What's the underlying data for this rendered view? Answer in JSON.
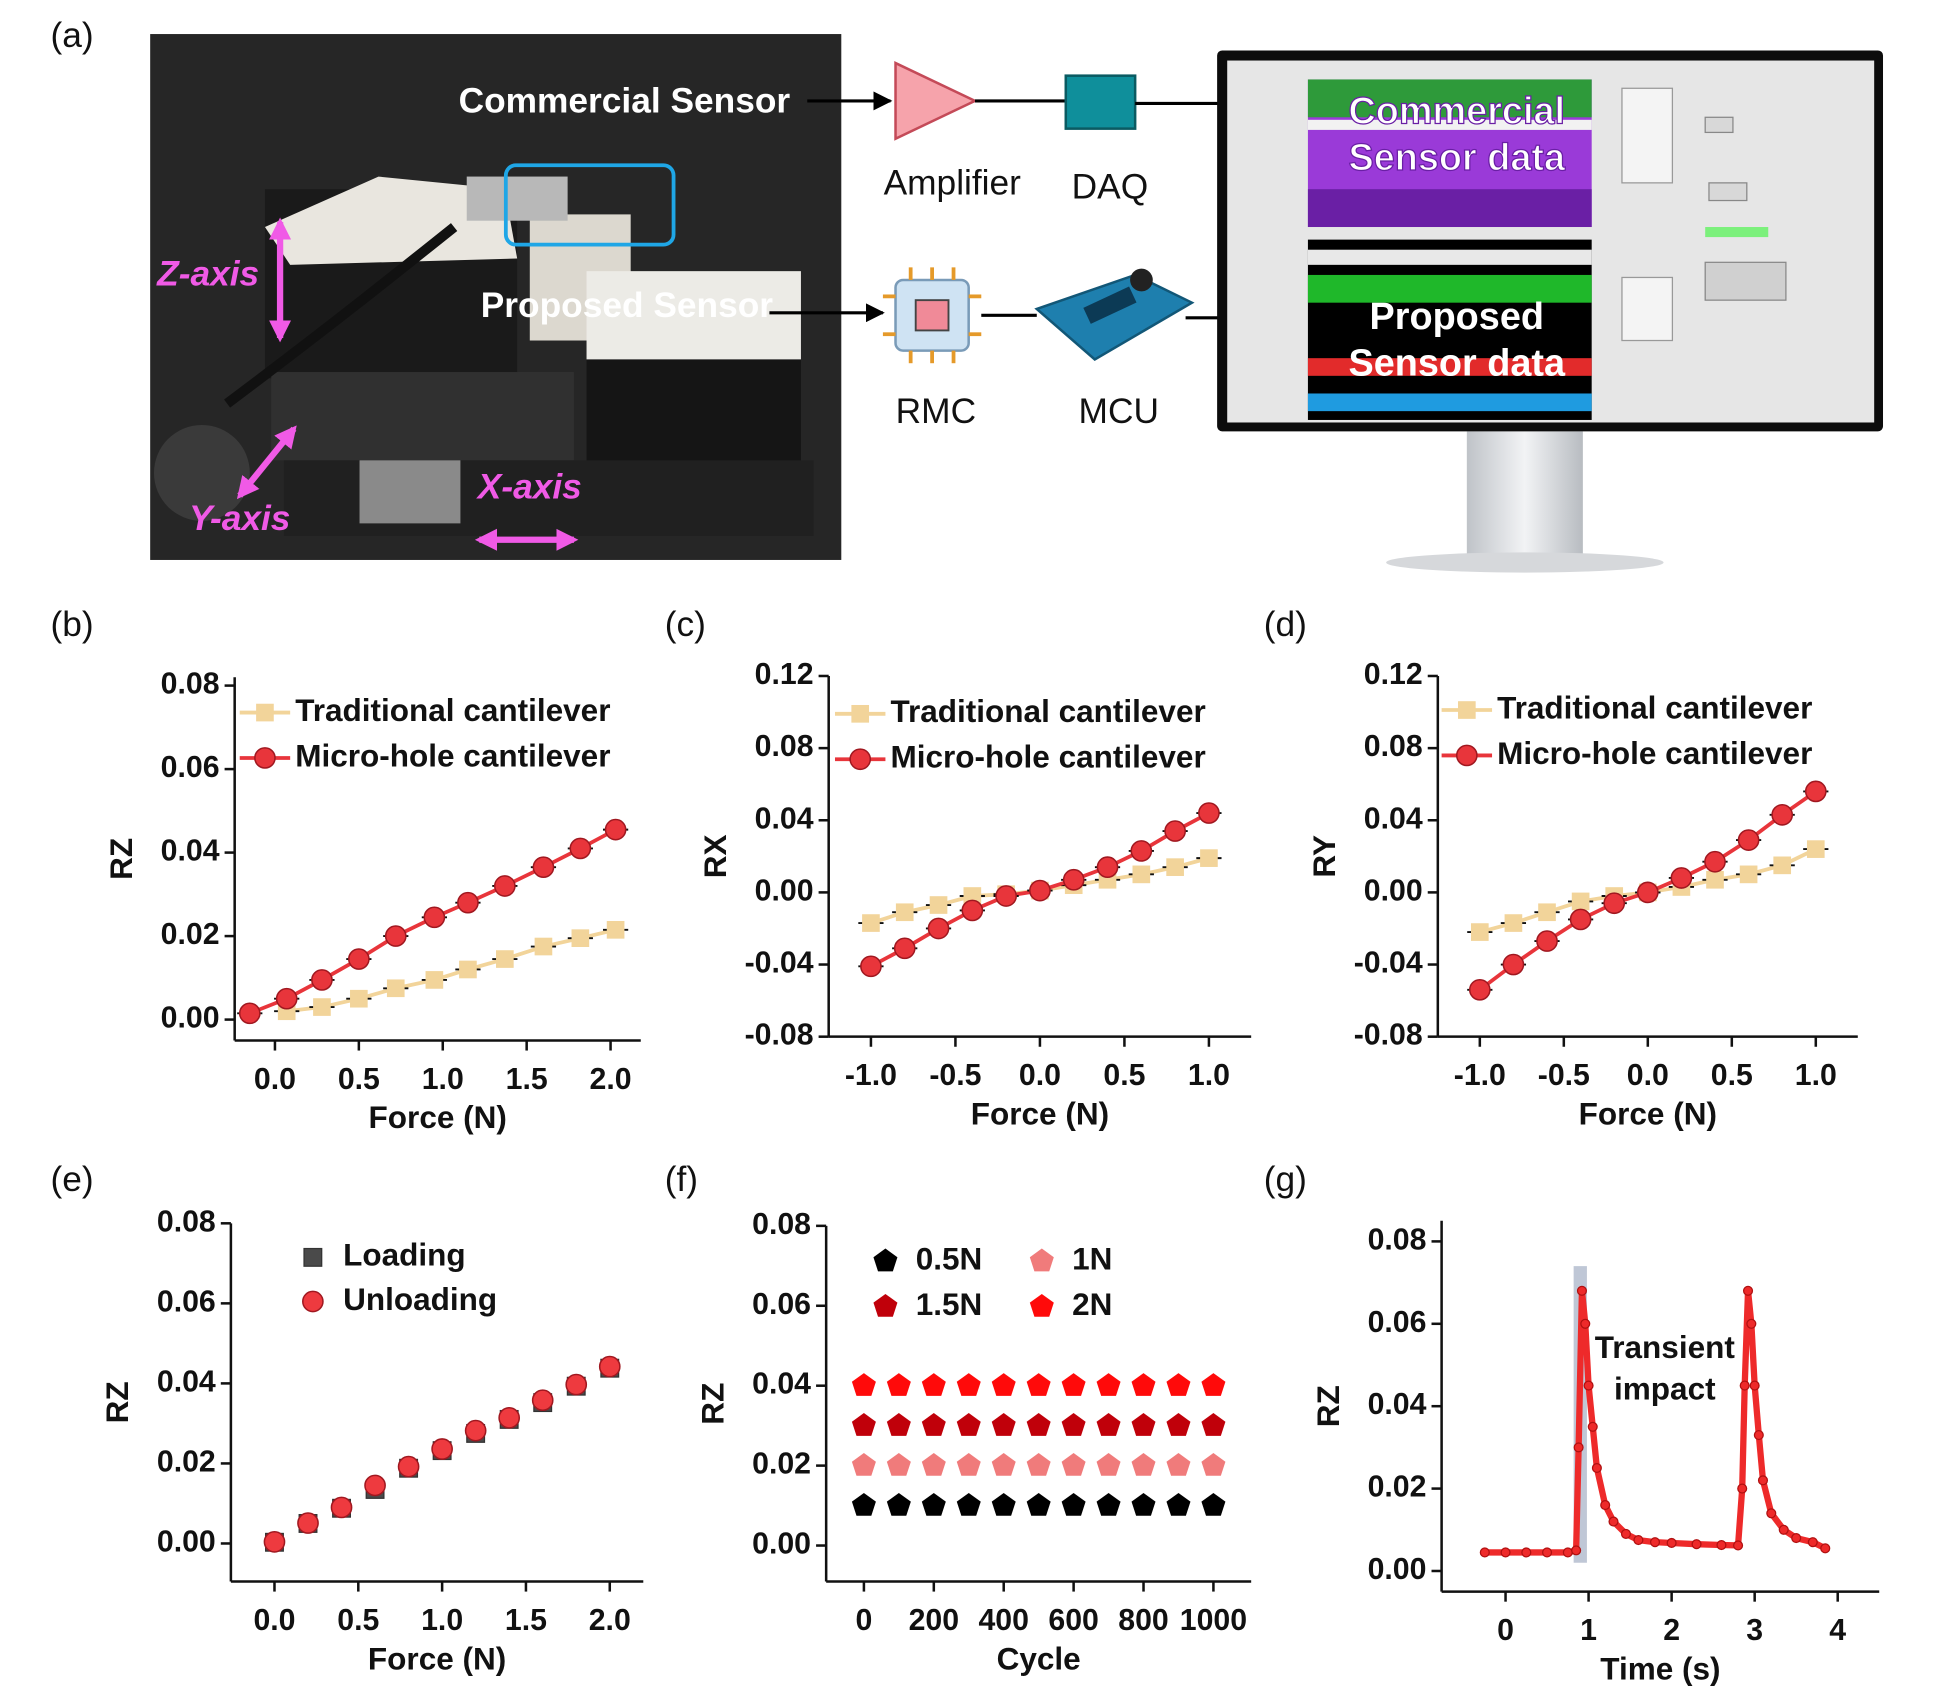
{
  "figure": {
    "panel_labels": [
      "(a)",
      "(b)",
      "(c)",
      "(d)",
      "(e)",
      "(f)",
      "(g)"
    ]
  },
  "setup": {
    "commercial_sensor": "Commercial Sensor",
    "proposed_sensor": "Proposed Sensor",
    "z_axis": "Z-axis",
    "y_axis": "Y-axis",
    "x_axis": "X-axis",
    "amplifier": "Amplifier",
    "daq": "DAQ",
    "rmc": "RMC",
    "mcu": "MCU",
    "commercial_data": [
      "Commercial",
      "Sensor data"
    ],
    "proposed_data": [
      "Proposed",
      "Sensor data"
    ]
  },
  "chart_data": [
    {
      "type": "line",
      "xlabel": "Force (N)",
      "ylabel": "RZ",
      "xlim": [
        -0.24,
        2.18
      ],
      "ylim": [
        -0.005,
        0.082
      ],
      "xticks": [
        {
          "value": 0,
          "label": "0.0"
        },
        {
          "value": 0.5,
          "label": "0.5"
        },
        {
          "value": 1,
          "label": "1.0"
        },
        {
          "value": 1.5,
          "label": "1.5"
        },
        {
          "value": 2,
          "label": "2.0"
        }
      ],
      "yticks": [
        {
          "value": 0,
          "label": "0.00"
        },
        {
          "value": 0.02,
          "label": "0.02"
        },
        {
          "value": 0.04,
          "label": "0.04"
        },
        {
          "value": 0.06,
          "label": "0.06"
        },
        {
          "value": 0.08,
          "label": "0.08"
        }
      ],
      "series": [
        {
          "name": "Traditional cantilever",
          "color": "#f2d49a",
          "marker": "square",
          "x": [
            0.07,
            0.28,
            0.5,
            0.72,
            0.95,
            1.15,
            1.37,
            1.6,
            1.82,
            2.03
          ],
          "values": [
            0.002,
            0.003,
            0.005,
            0.0075,
            0.0095,
            0.012,
            0.0145,
            0.0175,
            0.0195,
            0.0215
          ]
        },
        {
          "name": "Micro-hole cantilever",
          "color": "#e8353b",
          "marker": "circle",
          "x": [
            -0.15,
            0.07,
            0.28,
            0.5,
            0.72,
            0.95,
            1.15,
            1.37,
            1.6,
            1.82,
            2.03
          ],
          "values": [
            0.0015,
            0.005,
            0.0095,
            0.0145,
            0.02,
            0.0245,
            0.028,
            0.032,
            0.0365,
            0.041,
            0.0455
          ]
        }
      ]
    },
    {
      "type": "line",
      "xlabel": "Force (N)",
      "ylabel": "RX",
      "xlim": [
        -1.25,
        1.25
      ],
      "ylim": [
        -0.08,
        0.12
      ],
      "xticks": [
        {
          "value": -1,
          "label": "-1.0"
        },
        {
          "value": -0.5,
          "label": "-0.5"
        },
        {
          "value": 0,
          "label": "0.0"
        },
        {
          "value": 0.5,
          "label": "0.5"
        },
        {
          "value": 1,
          "label": "1.0"
        }
      ],
      "yticks": [
        {
          "value": -0.08,
          "label": "-0.08"
        },
        {
          "value": -0.04,
          "label": "-0.04"
        },
        {
          "value": 0,
          "label": "0.00"
        },
        {
          "value": 0.04,
          "label": "0.04"
        },
        {
          "value": 0.08,
          "label": "0.08"
        },
        {
          "value": 0.12,
          "label": "0.12"
        }
      ],
      "series": [
        {
          "name": "Traditional cantilever",
          "color": "#f2d49a",
          "marker": "square",
          "x": [
            -1,
            -0.8,
            -0.6,
            -0.4,
            -0.2,
            0,
            0.2,
            0.4,
            0.6,
            0.8,
            1
          ],
          "values": [
            -0.017,
            -0.011,
            -0.007,
            -0.002,
            -0.001,
            0.001,
            0.004,
            0.007,
            0.01,
            0.014,
            0.019
          ]
        },
        {
          "name": "Micro-hole cantilever",
          "color": "#e8353b",
          "marker": "circle",
          "x": [
            -1,
            -0.8,
            -0.6,
            -0.4,
            -0.2,
            0,
            0.2,
            0.4,
            0.6,
            0.8,
            1
          ],
          "values": [
            -0.041,
            -0.031,
            -0.02,
            -0.01,
            -0.002,
            0.001,
            0.007,
            0.014,
            0.023,
            0.034,
            0.044
          ]
        }
      ]
    },
    {
      "type": "line",
      "xlabel": "Force (N)",
      "ylabel": "RY",
      "xlim": [
        -1.25,
        1.25
      ],
      "ylim": [
        -0.08,
        0.12
      ],
      "xticks": [
        {
          "value": -1,
          "label": "-1.0"
        },
        {
          "value": -0.5,
          "label": "-0.5"
        },
        {
          "value": 0,
          "label": "0.0"
        },
        {
          "value": 0.5,
          "label": "0.5"
        },
        {
          "value": 1,
          "label": "1.0"
        }
      ],
      "yticks": [
        {
          "value": -0.08,
          "label": "-0.08"
        },
        {
          "value": -0.04,
          "label": "-0.04"
        },
        {
          "value": 0,
          "label": "0.00"
        },
        {
          "value": 0.04,
          "label": "0.04"
        },
        {
          "value": 0.08,
          "label": "0.08"
        },
        {
          "value": 0.12,
          "label": "0.12"
        }
      ],
      "series": [
        {
          "name": "Traditional cantilever",
          "color": "#f2d49a",
          "marker": "square",
          "x": [
            -1,
            -0.8,
            -0.6,
            -0.4,
            -0.2,
            0,
            0.2,
            0.4,
            0.6,
            0.8,
            1
          ],
          "values": [
            -0.022,
            -0.017,
            -0.011,
            -0.005,
            -0.002,
            0,
            0.003,
            0.007,
            0.01,
            0.015,
            0.024
          ]
        },
        {
          "name": "Micro-hole cantilever",
          "color": "#e8353b",
          "marker": "circle",
          "x": [
            -1,
            -0.8,
            -0.6,
            -0.4,
            -0.2,
            0,
            0.2,
            0.4,
            0.6,
            0.8,
            1
          ],
          "values": [
            -0.054,
            -0.04,
            -0.027,
            -0.015,
            -0.006,
            0,
            0.008,
            0.017,
            0.029,
            0.043,
            0.056
          ]
        }
      ]
    },
    {
      "type": "scatter",
      "xlabel": "Force (N)",
      "ylabel": "RZ",
      "xlim": [
        -0.26,
        2.2
      ],
      "ylim": [
        -0.0095,
        0.08
      ],
      "x": [
        0,
        0.2,
        0.4,
        0.6,
        0.8,
        1,
        1.2,
        1.4,
        1.6,
        1.8,
        2
      ],
      "xticks": [
        {
          "value": 0,
          "label": "0.0"
        },
        {
          "value": 0.5,
          "label": "0.5"
        },
        {
          "value": 1,
          "label": "1.0"
        },
        {
          "value": 1.5,
          "label": "1.5"
        },
        {
          "value": 2,
          "label": "2.0"
        }
      ],
      "yticks": [
        {
          "value": 0,
          "label": "0.00"
        },
        {
          "value": 0.02,
          "label": "0.02"
        },
        {
          "value": 0.04,
          "label": "0.04"
        },
        {
          "value": 0.06,
          "label": "0.06"
        },
        {
          "value": 0.08,
          "label": "0.08"
        }
      ],
      "series": [
        {
          "name": "Loading",
          "color": "#4a4a4a",
          "marker": "square",
          "values": [
            0.0003,
            0.005,
            0.0088,
            0.0135,
            0.0188,
            0.0232,
            0.0275,
            0.031,
            0.0352,
            0.0393,
            0.0438
          ]
        },
        {
          "name": "Unloading",
          "color": "#ee3a3f",
          "marker": "circle",
          "values": [
            0.0004,
            0.0051,
            0.009,
            0.0145,
            0.0192,
            0.0236,
            0.0282,
            0.0314,
            0.0358,
            0.0397,
            0.0442
          ]
        }
      ]
    },
    {
      "type": "scatter",
      "xlabel": "Cycle",
      "ylabel": "RZ",
      "xlim": [
        -108,
        1108
      ],
      "ylim": [
        -0.009,
        0.08
      ],
      "x": [
        0,
        100,
        200,
        300,
        400,
        500,
        600,
        700,
        800,
        900,
        1000
      ],
      "xticks": [
        0,
        200,
        400,
        600,
        800,
        1000
      ],
      "yticks": [
        {
          "value": 0,
          "label": "0.00"
        },
        {
          "value": 0.02,
          "label": "0.02"
        },
        {
          "value": 0.04,
          "label": "0.04"
        },
        {
          "value": 0.06,
          "label": "0.06"
        },
        {
          "value": 0.08,
          "label": "0.08"
        }
      ],
      "series": [
        {
          "name": "0.5N",
          "color": "#000000",
          "marker": "pentagon",
          "values": [
            0.01,
            0.01,
            0.01,
            0.01,
            0.01,
            0.01,
            0.01,
            0.01,
            0.01,
            0.01,
            0.01
          ]
        },
        {
          "name": "1N",
          "color": "#f07b7b",
          "marker": "pentagon",
          "values": [
            0.02,
            0.02,
            0.02,
            0.02,
            0.02,
            0.02,
            0.02,
            0.02,
            0.02,
            0.02,
            0.02
          ]
        },
        {
          "name": "1.5N",
          "color": "#c0000a",
          "marker": "pentagon",
          "values": [
            0.03,
            0.03,
            0.03,
            0.03,
            0.03,
            0.03,
            0.03,
            0.03,
            0.03,
            0.03,
            0.03
          ]
        },
        {
          "name": "2N",
          "color": "#ff0a0a",
          "marker": "pentagon",
          "values": [
            0.04,
            0.04,
            0.04,
            0.04,
            0.04,
            0.04,
            0.04,
            0.04,
            0.04,
            0.04,
            0.04
          ]
        }
      ]
    },
    {
      "type": "trace",
      "xlabel": "Time (s)",
      "ylabel": "RZ",
      "xlim": [
        -0.77,
        4.5
      ],
      "ylim": [
        -0.005,
        0.085
      ],
      "xticks": [
        0,
        1,
        2,
        3,
        4
      ],
      "yticks": [
        {
          "value": 0,
          "label": "0.00"
        },
        {
          "value": 0.02,
          "label": "0.02"
        },
        {
          "value": 0.04,
          "label": "0.04"
        },
        {
          "value": 0.06,
          "label": "0.06"
        },
        {
          "value": 0.08,
          "label": "0.08"
        }
      ],
      "annotation": [
        "Transient",
        "impact"
      ],
      "highlight": {
        "x": [
          0.82,
          0.98
        ],
        "y": [
          0.002,
          0.074
        ]
      },
      "series": [
        {
          "color": "#ee2a2a",
          "x": [
            -0.25,
            0,
            0.25,
            0.5,
            0.75,
            0.85,
            0.88,
            0.92,
            0.96,
            1.0,
            1.05,
            1.1,
            1.2,
            1.3,
            1.45,
            1.6,
            1.8,
            2.0,
            2.3,
            2.6,
            2.8,
            2.85,
            2.88,
            2.92,
            2.96,
            3.0,
            3.05,
            3.1,
            3.2,
            3.35,
            3.5,
            3.7,
            3.85
          ],
          "values": [
            0.0045,
            0.0045,
            0.0045,
            0.0045,
            0.0045,
            0.005,
            0.03,
            0.068,
            0.06,
            0.045,
            0.035,
            0.025,
            0.016,
            0.012,
            0.009,
            0.0075,
            0.007,
            0.0068,
            0.0065,
            0.0063,
            0.0062,
            0.02,
            0.045,
            0.068,
            0.06,
            0.045,
            0.033,
            0.022,
            0.014,
            0.01,
            0.008,
            0.007,
            0.0055
          ]
        }
      ]
    }
  ]
}
